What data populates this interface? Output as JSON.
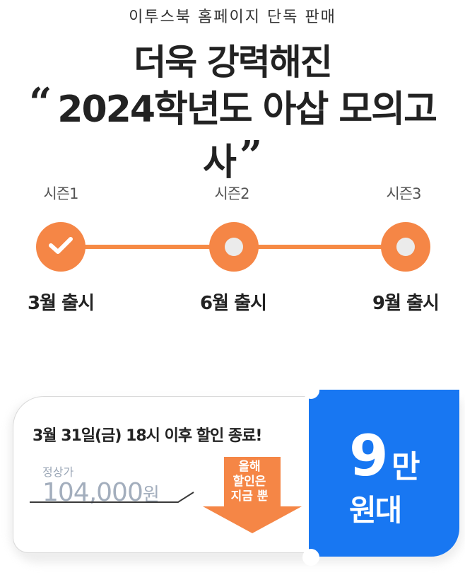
{
  "header": {
    "subtitle": "이투스북 홈페이지 단독 판매",
    "headline_line1": "더욱 강력해진",
    "headline_line2": "2024학년도 아삽 모의고사",
    "open_quote": "“",
    "close_quote": "”"
  },
  "timeline": {
    "seasons": [
      {
        "label": "시즌1",
        "release": "3월 출시",
        "status": "released"
      },
      {
        "label": "시즌2",
        "release": "6월 출시",
        "status": "upcoming"
      },
      {
        "label": "시즌3",
        "release": "9월 출시",
        "status": "upcoming"
      }
    ],
    "colors": {
      "accent": "#f58646",
      "inactive_dot": "#ebebeb"
    }
  },
  "ticket": {
    "deadline": "3월 31일(금) 18시 이후 할인 종료!",
    "regular_label": "정상가",
    "regular_price": "104,000",
    "regular_unit": "원",
    "arrow_lines": [
      "올해",
      "할인은",
      "지금 뿐"
    ],
    "sale_number": "9",
    "sale_unit": "만",
    "sale_suffix": "원대",
    "colors": {
      "sale_bg": "#1877f2",
      "arrow": "#f58646",
      "strike": "#a3aebd"
    }
  }
}
